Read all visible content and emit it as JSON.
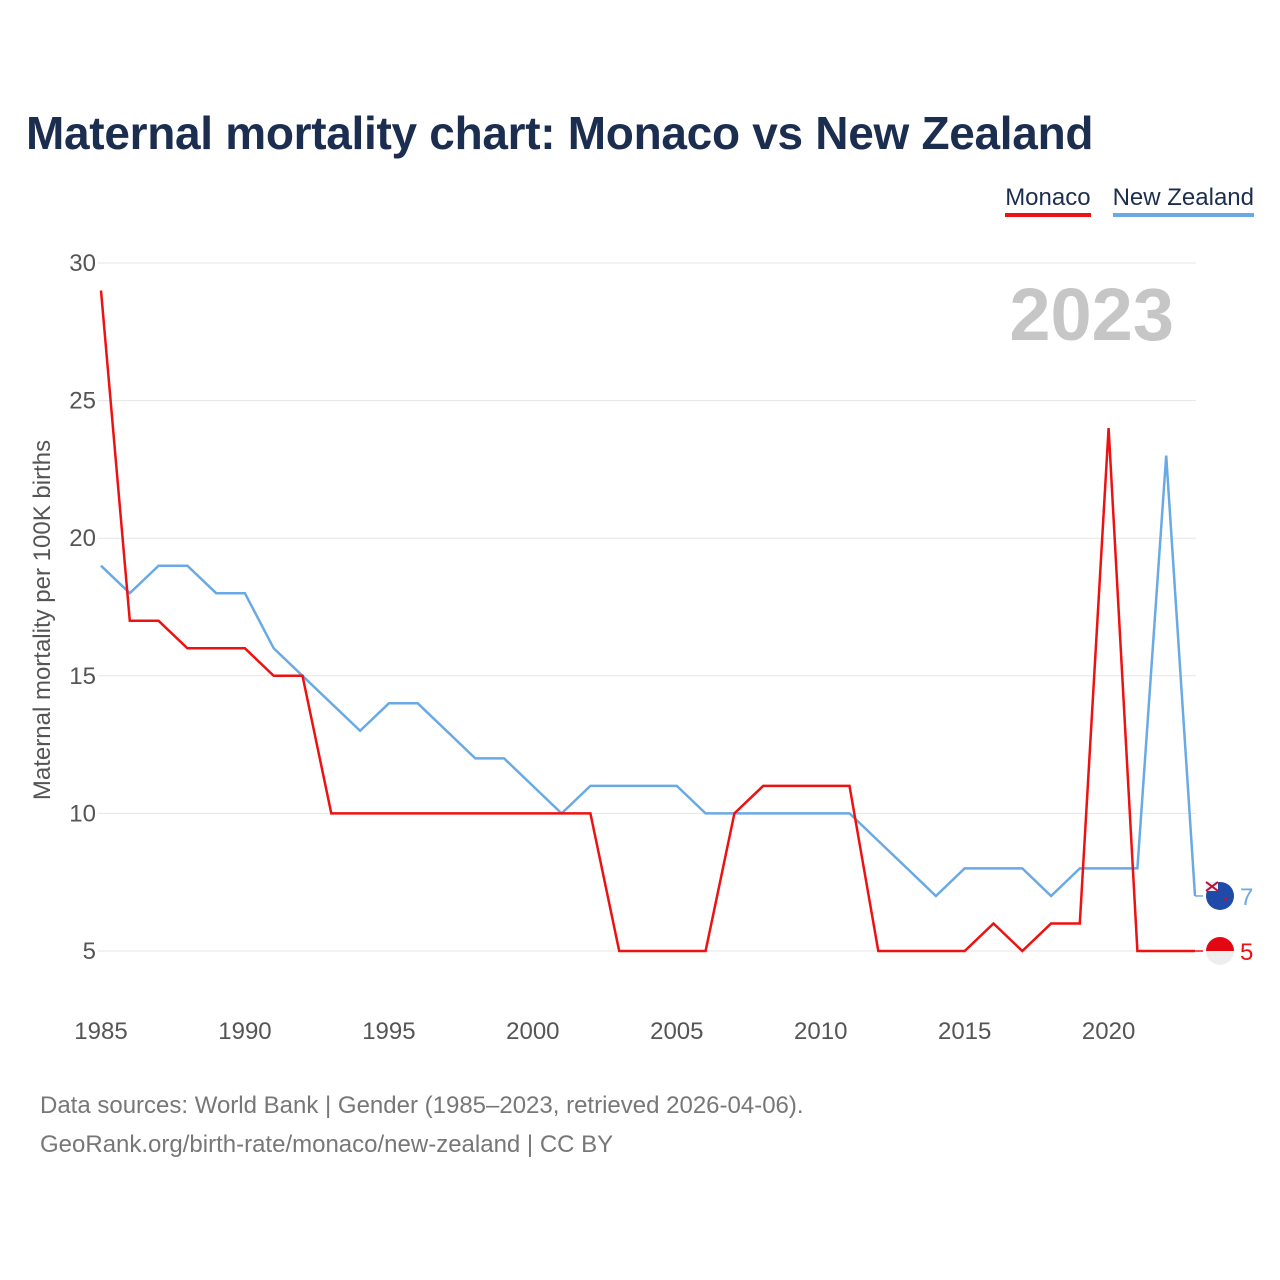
{
  "title": "Maternal mortality chart: Monaco vs New Zealand",
  "legend": {
    "monaco": "Monaco",
    "new_zealand": "New Zealand"
  },
  "year_label": "2023",
  "colors": {
    "monaco": "#ee1111",
    "new_zealand": "#6aaae4",
    "title": "#1c2e4f",
    "grid": "#e6e6e6",
    "year": "#c6c6c6"
  },
  "footer": {
    "line1": "Data sources: World Bank | Gender (1985–2023, retrieved 2026-04-06).",
    "line2": "GeoRank.org/birth-rate/monaco/new-zealand | CC BY"
  },
  "chart_data": {
    "type": "line",
    "title": "Maternal mortality chart: Monaco vs New Zealand",
    "xlabel": "",
    "ylabel": "Maternal mortality per 100K births",
    "x": [
      1985,
      1986,
      1987,
      1988,
      1989,
      1990,
      1991,
      1992,
      1993,
      1994,
      1995,
      1996,
      1997,
      1998,
      1999,
      2000,
      2001,
      2002,
      2003,
      2004,
      2005,
      2006,
      2007,
      2008,
      2009,
      2010,
      2011,
      2012,
      2013,
      2014,
      2015,
      2016,
      2017,
      2018,
      2019,
      2020,
      2021,
      2022,
      2023
    ],
    "series": [
      {
        "name": "Monaco",
        "color": "#ee1111",
        "values": [
          29,
          17,
          17,
          16,
          16,
          16,
          15,
          15,
          10,
          10,
          10,
          10,
          10,
          10,
          10,
          10,
          10,
          10,
          5,
          5,
          5,
          5,
          10,
          11,
          11,
          11,
          11,
          5,
          5,
          5,
          5,
          6,
          5,
          6,
          6,
          24,
          5,
          5,
          5
        ],
        "end_label": "5"
      },
      {
        "name": "New Zealand",
        "color": "#6aaae4",
        "values": [
          19,
          18,
          19,
          19,
          18,
          18,
          16,
          15,
          14,
          13,
          14,
          14,
          13,
          12,
          12,
          11,
          10,
          11,
          11,
          11,
          11,
          10,
          10,
          10,
          10,
          10,
          10,
          9,
          8,
          7,
          8,
          8,
          8,
          7,
          8,
          8,
          8,
          23,
          7
        ],
        "end_label": "7"
      }
    ],
    "xticks": [
      "1985",
      "1990",
      "1995",
      "2000",
      "2005",
      "2010",
      "2015",
      "2020"
    ],
    "yticks": [
      "5",
      "10",
      "15",
      "20",
      "25",
      "30"
    ],
    "xlim": [
      1985,
      2023
    ],
    "ylim": [
      5,
      30
    ],
    "grid": true,
    "legend": "top-right"
  }
}
